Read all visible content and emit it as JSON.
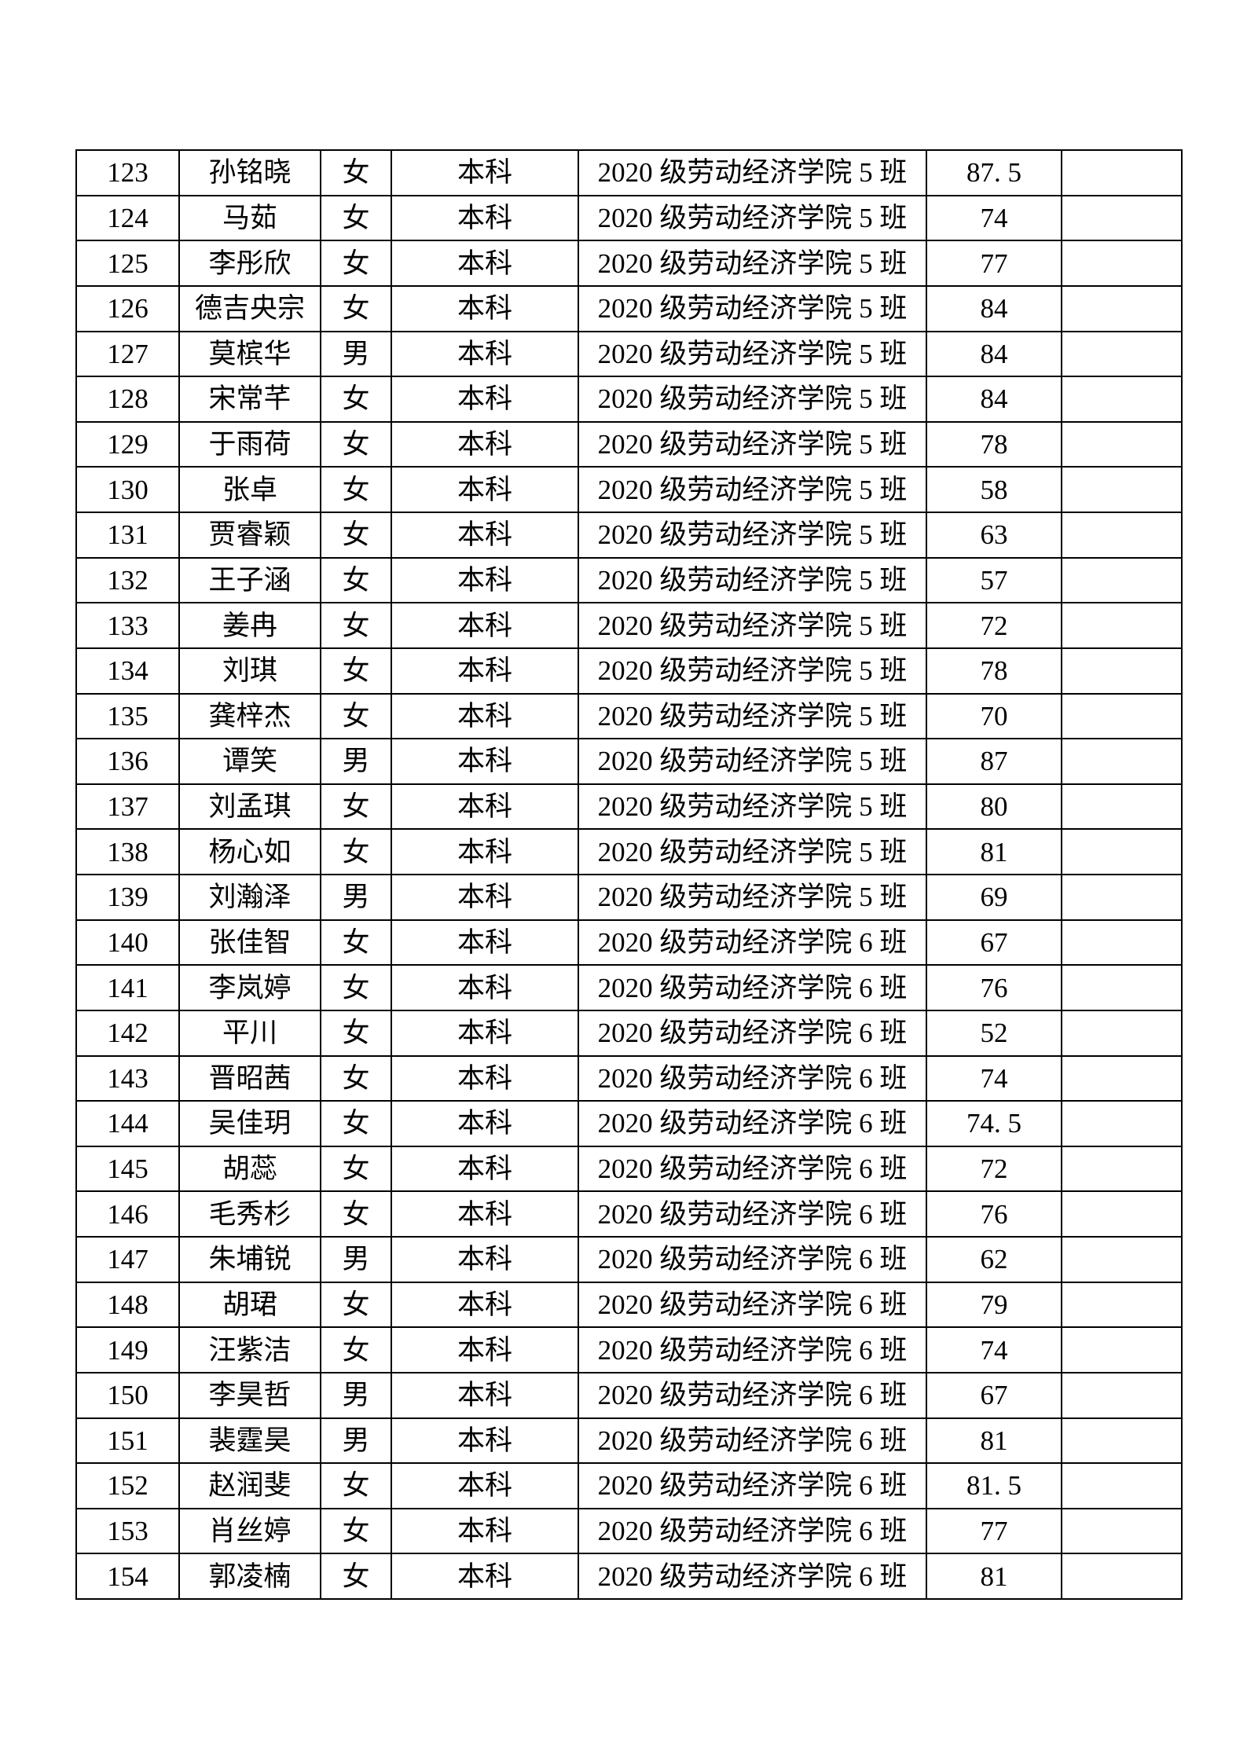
{
  "table": {
    "rows": [
      {
        "index": "123",
        "name": "孙铭晓",
        "gender": "女",
        "level": "本科",
        "class": "2020 级劳动经济学院 5 班",
        "score": "87. 5",
        "remark": ""
      },
      {
        "index": "124",
        "name": "马茹",
        "gender": "女",
        "level": "本科",
        "class": "2020 级劳动经济学院 5 班",
        "score": "74",
        "remark": ""
      },
      {
        "index": "125",
        "name": "李彤欣",
        "gender": "女",
        "level": "本科",
        "class": "2020 级劳动经济学院 5 班",
        "score": "77",
        "remark": ""
      },
      {
        "index": "126",
        "name": "德吉央宗",
        "gender": "女",
        "level": "本科",
        "class": "2020 级劳动经济学院 5 班",
        "score": "84",
        "remark": ""
      },
      {
        "index": "127",
        "name": "莫槟华",
        "gender": "男",
        "level": "本科",
        "class": "2020 级劳动经济学院 5 班",
        "score": "84",
        "remark": ""
      },
      {
        "index": "128",
        "name": "宋常芊",
        "gender": "女",
        "level": "本科",
        "class": "2020 级劳动经济学院 5 班",
        "score": "84",
        "remark": ""
      },
      {
        "index": "129",
        "name": "于雨荷",
        "gender": "女",
        "level": "本科",
        "class": "2020 级劳动经济学院 5 班",
        "score": "78",
        "remark": ""
      },
      {
        "index": "130",
        "name": "张卓",
        "gender": "女",
        "level": "本科",
        "class": "2020 级劳动经济学院 5 班",
        "score": "58",
        "remark": ""
      },
      {
        "index": "131",
        "name": "贾睿颖",
        "gender": "女",
        "level": "本科",
        "class": "2020 级劳动经济学院 5 班",
        "score": "63",
        "remark": ""
      },
      {
        "index": "132",
        "name": "王子涵",
        "gender": "女",
        "level": "本科",
        "class": "2020 级劳动经济学院 5 班",
        "score": "57",
        "remark": ""
      },
      {
        "index": "133",
        "name": "姜冉",
        "gender": "女",
        "level": "本科",
        "class": "2020 级劳动经济学院 5 班",
        "score": "72",
        "remark": ""
      },
      {
        "index": "134",
        "name": "刘琪",
        "gender": "女",
        "level": "本科",
        "class": "2020 级劳动经济学院 5 班",
        "score": "78",
        "remark": ""
      },
      {
        "index": "135",
        "name": "龚梓杰",
        "gender": "女",
        "level": "本科",
        "class": "2020 级劳动经济学院 5 班",
        "score": "70",
        "remark": ""
      },
      {
        "index": "136",
        "name": "谭笑",
        "gender": "男",
        "level": "本科",
        "class": "2020 级劳动经济学院 5 班",
        "score": "87",
        "remark": ""
      },
      {
        "index": "137",
        "name": "刘孟琪",
        "gender": "女",
        "level": "本科",
        "class": "2020 级劳动经济学院 5 班",
        "score": "80",
        "remark": ""
      },
      {
        "index": "138",
        "name": "杨心如",
        "gender": "女",
        "level": "本科",
        "class": "2020 级劳动经济学院 5 班",
        "score": "81",
        "remark": ""
      },
      {
        "index": "139",
        "name": "刘瀚泽",
        "gender": "男",
        "level": "本科",
        "class": "2020 级劳动经济学院 5 班",
        "score": "69",
        "remark": ""
      },
      {
        "index": "140",
        "name": "张佳智",
        "gender": "女",
        "level": "本科",
        "class": "2020 级劳动经济学院 6 班",
        "score": "67",
        "remark": ""
      },
      {
        "index": "141",
        "name": "李岚婷",
        "gender": "女",
        "level": "本科",
        "class": "2020 级劳动经济学院 6 班",
        "score": "76",
        "remark": ""
      },
      {
        "index": "142",
        "name": "平川",
        "gender": "女",
        "level": "本科",
        "class": "2020 级劳动经济学院 6 班",
        "score": "52",
        "remark": ""
      },
      {
        "index": "143",
        "name": "晋昭茜",
        "gender": "女",
        "level": "本科",
        "class": "2020 级劳动经济学院 6 班",
        "score": "74",
        "remark": ""
      },
      {
        "index": "144",
        "name": "吴佳玥",
        "gender": "女",
        "level": "本科",
        "class": "2020 级劳动经济学院 6 班",
        "score": "74. 5",
        "remark": ""
      },
      {
        "index": "145",
        "name": "胡蕊",
        "gender": "女",
        "level": "本科",
        "class": "2020 级劳动经济学院 6 班",
        "score": "72",
        "remark": ""
      },
      {
        "index": "146",
        "name": "毛秀杉",
        "gender": "女",
        "level": "本科",
        "class": "2020 级劳动经济学院 6 班",
        "score": "76",
        "remark": ""
      },
      {
        "index": "147",
        "name": "朱埔锐",
        "gender": "男",
        "level": "本科",
        "class": "2020 级劳动经济学院 6 班",
        "score": "62",
        "remark": ""
      },
      {
        "index": "148",
        "name": "胡珺",
        "gender": "女",
        "level": "本科",
        "class": "2020 级劳动经济学院 6 班",
        "score": "79",
        "remark": ""
      },
      {
        "index": "149",
        "name": "汪紫洁",
        "gender": "女",
        "level": "本科",
        "class": "2020 级劳动经济学院 6 班",
        "score": "74",
        "remark": ""
      },
      {
        "index": "150",
        "name": "李昊哲",
        "gender": "男",
        "level": "本科",
        "class": "2020 级劳动经济学院 6 班",
        "score": "67",
        "remark": ""
      },
      {
        "index": "151",
        "name": "裴霆昊",
        "gender": "男",
        "level": "本科",
        "class": "2020 级劳动经济学院 6 班",
        "score": "81",
        "remark": ""
      },
      {
        "index": "152",
        "name": "赵润斐",
        "gender": "女",
        "level": "本科",
        "class": "2020 级劳动经济学院 6 班",
        "score": "81. 5",
        "remark": ""
      },
      {
        "index": "153",
        "name": "肖丝婷",
        "gender": "女",
        "level": "本科",
        "class": "2020 级劳动经济学院 6 班",
        "score": "77",
        "remark": ""
      },
      {
        "index": "154",
        "name": "郭凌楠",
        "gender": "女",
        "level": "本科",
        "class": "2020 级劳动经济学院 6 班",
        "score": "81",
        "remark": ""
      }
    ]
  }
}
